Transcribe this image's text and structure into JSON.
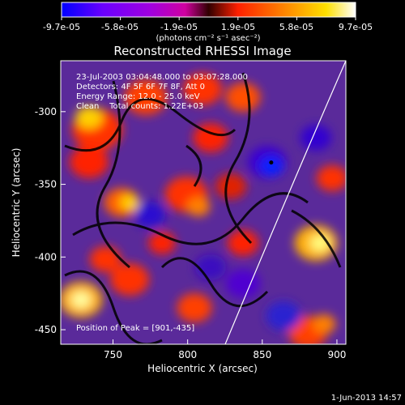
{
  "colorbar": {
    "ticks": [
      "-9.7e-05",
      "-5.8e-05",
      "-1.9e-05",
      "1.9e-05",
      "5.8e-05",
      "9.7e-05"
    ],
    "unit_label": "(photons cm⁻² s⁻¹ asec⁻²)",
    "colors": [
      "#0000ff",
      "#6a00ff",
      "#b000e0",
      "#e000a0",
      "#ff2000",
      "#ff8000",
      "#ffe000",
      "#ffffff"
    ]
  },
  "chart_data": {
    "type": "heatmap",
    "title": "Reconstructed RHESSI Image",
    "xlabel": "Heliocentric X (arcsec)",
    "ylabel": "Heliocentric Y (arcsec)",
    "xlim": [
      715,
      906
    ],
    "ylim": [
      -460,
      -265
    ],
    "x_ticks": [
      750,
      800,
      850,
      900
    ],
    "y_ticks": [
      -300,
      -350,
      -400,
      -450
    ],
    "annotations": [
      "23-Jul-2003 03:04:48.000 to 03:07:28.000",
      "Detectors: 4F 5F 6F 7F 8F, Att 0",
      "Energy Range: 12.0 - 25.0 keV",
      "Clean    Total counts: 1.22E+03"
    ],
    "peak_label": "Position of Peak = [901,-435]",
    "peak_position": [
      901,
      -435
    ],
    "min_marker": [
      856,
      -335
    ],
    "limb": "white arc from top-right to bottom-center",
    "cmap_range": [
      -9.7e-05,
      9.7e-05
    ]
  },
  "footer": {
    "date": "1-Jun-2013 14:57"
  }
}
